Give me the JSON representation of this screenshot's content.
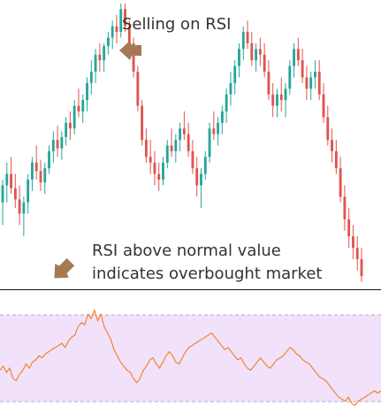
{
  "colors": {
    "bull": "#26a69a",
    "bear": "#e0544f",
    "rsi_line": "#f0872f",
    "rsi_band_fill": "#f2e1fa",
    "rsi_band_border": "#b9a7c9",
    "separator": "#111111",
    "arrow": "#a57a52",
    "annotation_text": "#333333"
  },
  "icons": {
    "arrow_left": "arrow-left-icon",
    "arrow_down_left": "arrow-down-left-icon"
  },
  "annotations": {
    "selling_on_rsi": "Selling on RSI",
    "rsi_note_line1": "RSI above normal value",
    "rsi_note_line2": "indicates overbought market"
  },
  "chart_data": [
    {
      "type": "candlestick",
      "title": "",
      "xlabel": "",
      "ylabel": "",
      "ylim": [
        0,
        100
      ],
      "grid": false,
      "bull_color": "bull",
      "bear_color": "bear",
      "candles": [
        [
          30,
          38,
          22,
          36
        ],
        [
          36,
          44,
          30,
          40
        ],
        [
          40,
          46,
          33,
          35
        ],
        [
          35,
          40,
          28,
          31
        ],
        [
          31,
          36,
          22,
          26
        ],
        [
          26,
          32,
          18,
          30
        ],
        [
          30,
          40,
          26,
          38
        ],
        [
          38,
          46,
          34,
          44
        ],
        [
          44,
          50,
          38,
          41
        ],
        [
          41,
          45,
          34,
          37
        ],
        [
          37,
          44,
          33,
          42
        ],
        [
          42,
          50,
          40,
          48
        ],
        [
          48,
          55,
          44,
          52
        ],
        [
          52,
          57,
          46,
          49
        ],
        [
          49,
          55,
          45,
          53
        ],
        [
          53,
          60,
          50,
          58
        ],
        [
          58,
          62,
          52,
          56
        ],
        [
          56,
          66,
          54,
          64
        ],
        [
          64,
          70,
          60,
          62
        ],
        [
          62,
          68,
          58,
          66
        ],
        [
          66,
          74,
          62,
          72
        ],
        [
          72,
          80,
          68,
          76
        ],
        [
          76,
          84,
          72,
          82
        ],
        [
          82,
          86,
          76,
          80
        ],
        [
          80,
          86,
          76,
          85
        ],
        [
          85,
          90,
          82,
          88
        ],
        [
          88,
          94,
          84,
          92
        ],
        [
          92,
          96,
          86,
          90
        ],
        [
          90,
          100,
          88,
          98
        ],
        [
          98,
          100,
          90,
          92
        ],
        [
          92,
          94,
          84,
          86
        ],
        [
          86,
          88,
          74,
          76
        ],
        [
          76,
          78,
          62,
          64
        ],
        [
          64,
          66,
          50,
          52
        ],
        [
          52,
          56,
          44,
          46
        ],
        [
          46,
          52,
          40,
          44
        ],
        [
          44,
          48,
          36,
          40
        ],
        [
          40,
          44,
          34,
          38
        ],
        [
          38,
          46,
          36,
          44
        ],
        [
          44,
          52,
          42,
          50
        ],
        [
          50,
          56,
          46,
          48
        ],
        [
          48,
          54,
          44,
          52
        ],
        [
          52,
          58,
          48,
          56
        ],
        [
          56,
          62,
          52,
          54
        ],
        [
          54,
          58,
          46,
          48
        ],
        [
          48,
          52,
          40,
          42
        ],
        [
          42,
          46,
          32,
          36
        ],
        [
          36,
          42,
          28,
          40
        ],
        [
          40,
          48,
          38,
          46
        ],
        [
          46,
          58,
          44,
          56
        ],
        [
          56,
          62,
          52,
          54
        ],
        [
          54,
          60,
          50,
          58
        ],
        [
          58,
          64,
          54,
          62
        ],
        [
          62,
          70,
          58,
          68
        ],
        [
          68,
          76,
          64,
          72
        ],
        [
          72,
          80,
          68,
          78
        ],
        [
          78,
          86,
          74,
          84
        ],
        [
          84,
          92,
          80,
          90
        ],
        [
          90,
          94,
          84,
          86
        ],
        [
          86,
          90,
          78,
          80
        ],
        [
          80,
          86,
          76,
          84
        ],
        [
          84,
          88,
          78,
          82
        ],
        [
          82,
          86,
          74,
          76
        ],
        [
          76,
          80,
          66,
          68
        ],
        [
          68,
          72,
          60,
          64
        ],
        [
          64,
          70,
          60,
          68
        ],
        [
          68,
          74,
          62,
          66
        ],
        [
          66,
          72,
          60,
          70
        ],
        [
          70,
          80,
          68,
          78
        ],
        [
          78,
          86,
          74,
          84
        ],
        [
          84,
          88,
          78,
          80
        ],
        [
          80,
          84,
          72,
          74
        ],
        [
          74,
          78,
          66,
          70
        ],
        [
          70,
          76,
          66,
          74
        ],
        [
          74,
          80,
          70,
          76
        ],
        [
          76,
          80,
          66,
          68
        ],
        [
          68,
          72,
          58,
          60
        ],
        [
          60,
          64,
          50,
          52
        ],
        [
          52,
          56,
          44,
          48
        ],
        [
          48,
          52,
          40,
          42
        ],
        [
          42,
          46,
          30,
          32
        ],
        [
          32,
          36,
          20,
          24
        ],
        [
          24,
          28,
          14,
          18
        ],
        [
          18,
          22,
          10,
          14
        ],
        [
          14,
          18,
          6,
          10
        ],
        [
          10,
          14,
          2,
          4
        ]
      ]
    },
    {
      "type": "line",
      "title": "",
      "xlabel": "",
      "ylabel": "",
      "ylim": [
        0,
        100
      ],
      "grid": false,
      "band": [
        30,
        100
      ],
      "values": [
        38,
        42,
        36,
        40,
        30,
        28,
        34,
        38,
        44,
        40,
        46,
        48,
        52,
        50,
        54,
        56,
        58,
        60,
        62,
        64,
        60,
        66,
        70,
        72,
        80,
        84,
        82,
        92,
        88,
        96,
        86,
        92,
        80,
        74,
        68,
        58,
        52,
        46,
        42,
        38,
        36,
        30,
        26,
        30,
        38,
        42,
        48,
        50,
        44,
        40,
        46,
        52,
        56,
        52,
        46,
        44,
        50,
        56,
        60,
        62,
        64,
        66,
        68,
        70,
        72,
        74,
        70,
        66,
        62,
        58,
        60,
        56,
        52,
        48,
        50,
        44,
        40,
        38,
        42,
        46,
        50,
        46,
        42,
        40,
        44,
        48,
        50,
        52,
        56,
        60,
        58,
        54,
        52,
        48,
        46,
        44,
        40,
        36,
        32,
        30,
        28,
        24,
        20,
        16,
        12,
        10,
        8,
        12,
        6,
        4,
        8,
        10,
        12,
        14,
        16,
        18,
        16,
        18
      ]
    }
  ]
}
